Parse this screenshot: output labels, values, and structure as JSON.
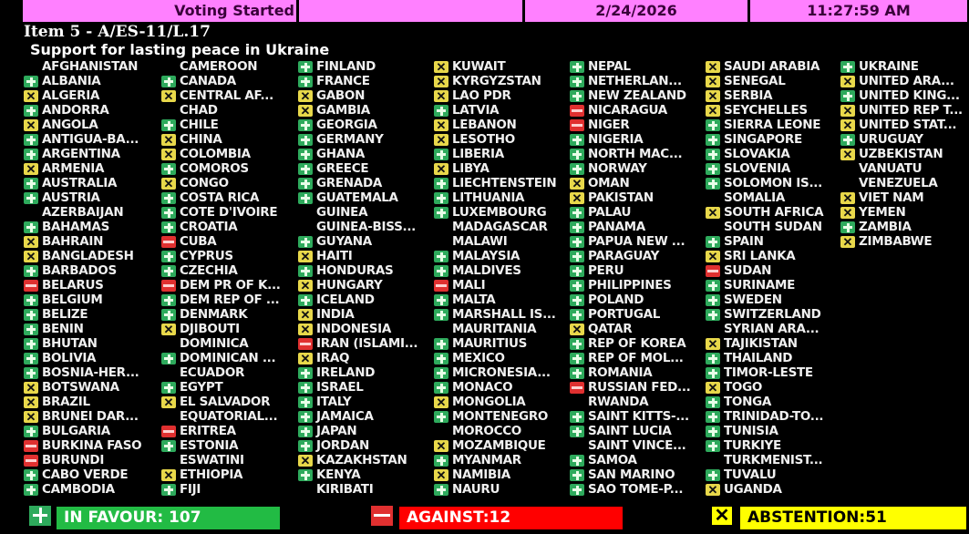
{
  "header": {
    "status": "Voting Started",
    "blank": "",
    "date": "2/24/2026",
    "time": "11:27:59 AM"
  },
  "item": {
    "number": "Item 5 - A/ES-11/L.17",
    "title": "Support for lasting peace in Ukraine"
  },
  "colors": {
    "header_bg": "#ff80ff",
    "yes": "#2eaa5c",
    "no": "#e03030",
    "abstain": "#e8d84a",
    "favour_bar": "#22bb44",
    "against_bar": "#ff0000",
    "abstention_bar": "#ffff00"
  },
  "vote_legend": {
    "Y": "plus-icon (in favour)",
    "N": "minus-icon (against)",
    "A": "x-icon (abstention)",
    "": "no vote"
  },
  "columns": [
    [
      [
        "AFGHANISTAN",
        ""
      ],
      [
        "ALBANIA",
        "Y"
      ],
      [
        "ALGERIA",
        "A"
      ],
      [
        "ANDORRA",
        "Y"
      ],
      [
        "ANGOLA",
        "A"
      ],
      [
        "ANTIGUA-BA...",
        "Y"
      ],
      [
        "ARGENTINA",
        "Y"
      ],
      [
        "ARMENIA",
        "A"
      ],
      [
        "AUSTRALIA",
        "Y"
      ],
      [
        "AUSTRIA",
        "Y"
      ],
      [
        "AZERBAIJAN",
        ""
      ],
      [
        "BAHAMAS",
        "Y"
      ],
      [
        "BAHRAIN",
        "A"
      ],
      [
        "BANGLADESH",
        "A"
      ],
      [
        "BARBADOS",
        "Y"
      ],
      [
        "BELARUS",
        "N"
      ],
      [
        "BELGIUM",
        "Y"
      ],
      [
        "BELIZE",
        "Y"
      ],
      [
        "BENIN",
        "Y"
      ],
      [
        "BHUTAN",
        "Y"
      ],
      [
        "BOLIVIA",
        "Y"
      ],
      [
        "BOSNIA-HER...",
        "Y"
      ],
      [
        "BOTSWANA",
        "A"
      ],
      [
        "BRAZIL",
        "A"
      ],
      [
        "BRUNEI DAR...",
        "A"
      ],
      [
        "BULGARIA",
        "Y"
      ],
      [
        "BURKINA FASO",
        "N"
      ],
      [
        "BURUNDI",
        "N"
      ],
      [
        "CABO VERDE",
        "Y"
      ],
      [
        "CAMBODIA",
        "Y"
      ]
    ],
    [
      [
        "CAMEROON",
        ""
      ],
      [
        "CANADA",
        "Y"
      ],
      [
        "CENTRAL AF...",
        "A"
      ],
      [
        "CHAD",
        ""
      ],
      [
        "CHILE",
        "Y"
      ],
      [
        "CHINA",
        "A"
      ],
      [
        "COLOMBIA",
        "A"
      ],
      [
        "COMOROS",
        "Y"
      ],
      [
        "CONGO",
        "A"
      ],
      [
        "COSTA RICA",
        "Y"
      ],
      [
        "COTE D'IVOIRE",
        "Y"
      ],
      [
        "CROATIA",
        "Y"
      ],
      [
        "CUBA",
        "N"
      ],
      [
        "CYPRUS",
        "Y"
      ],
      [
        "CZECHIA",
        "Y"
      ],
      [
        "DEM PR OF K...",
        "N"
      ],
      [
        "DEM REP OF ...",
        "Y"
      ],
      [
        "DENMARK",
        "Y"
      ],
      [
        "DJIBOUTI",
        "A"
      ],
      [
        "DOMINICA",
        ""
      ],
      [
        "DOMINICAN ...",
        "Y"
      ],
      [
        "ECUADOR",
        ""
      ],
      [
        "EGYPT",
        "Y"
      ],
      [
        "EL SALVADOR",
        "A"
      ],
      [
        "EQUATORIAL...",
        ""
      ],
      [
        "ERITREA",
        "N"
      ],
      [
        "ESTONIA",
        "Y"
      ],
      [
        "ESWATINI",
        ""
      ],
      [
        "ETHIOPIA",
        "A"
      ],
      [
        "FIJI",
        "Y"
      ]
    ],
    [
      [
        "FINLAND",
        "Y"
      ],
      [
        "FRANCE",
        "Y"
      ],
      [
        "GABON",
        "A"
      ],
      [
        "GAMBIA",
        "A"
      ],
      [
        "GEORGIA",
        "Y"
      ],
      [
        "GERMANY",
        "Y"
      ],
      [
        "GHANA",
        "Y"
      ],
      [
        "GREECE",
        "Y"
      ],
      [
        "GRENADA",
        "Y"
      ],
      [
        "GUATEMALA",
        "Y"
      ],
      [
        "GUINEA",
        ""
      ],
      [
        "GUINEA-BISS...",
        ""
      ],
      [
        "GUYANA",
        "Y"
      ],
      [
        "HAITI",
        "A"
      ],
      [
        "HONDURAS",
        "Y"
      ],
      [
        "HUNGARY",
        "A"
      ],
      [
        "ICELAND",
        "Y"
      ],
      [
        "INDIA",
        "A"
      ],
      [
        "INDONESIA",
        "A"
      ],
      [
        "IRAN (ISLAMI...",
        "N"
      ],
      [
        "IRAQ",
        "A"
      ],
      [
        "IRELAND",
        "Y"
      ],
      [
        "ISRAEL",
        "Y"
      ],
      [
        "ITALY",
        "Y"
      ],
      [
        "JAMAICA",
        "Y"
      ],
      [
        "JAPAN",
        "Y"
      ],
      [
        "JORDAN",
        "Y"
      ],
      [
        "KAZAKHSTAN",
        "A"
      ],
      [
        "KENYA",
        "Y"
      ],
      [
        "KIRIBATI",
        ""
      ]
    ],
    [
      [
        "KUWAIT",
        "A"
      ],
      [
        "KYRGYZSTAN",
        "A"
      ],
      [
        "LAO PDR",
        "A"
      ],
      [
        "LATVIA",
        "Y"
      ],
      [
        "LEBANON",
        "A"
      ],
      [
        "LESOTHO",
        "A"
      ],
      [
        "LIBERIA",
        "Y"
      ],
      [
        "LIBYA",
        "A"
      ],
      [
        "LIECHTENSTEIN",
        "Y"
      ],
      [
        "LITHUANIA",
        "Y"
      ],
      [
        "LUXEMBOURG",
        "Y"
      ],
      [
        "MADAGASCAR",
        ""
      ],
      [
        "MALAWI",
        ""
      ],
      [
        "MALAYSIA",
        "Y"
      ],
      [
        "MALDIVES",
        "Y"
      ],
      [
        "MALI",
        "N"
      ],
      [
        "MALTA",
        "Y"
      ],
      [
        "MARSHALL IS...",
        "Y"
      ],
      [
        "MAURITANIA",
        ""
      ],
      [
        "MAURITIUS",
        "Y"
      ],
      [
        "MEXICO",
        "Y"
      ],
      [
        "MICRONESIA...",
        "Y"
      ],
      [
        "MONACO",
        "Y"
      ],
      [
        "MONGOLIA",
        "A"
      ],
      [
        "MONTENEGRO",
        "Y"
      ],
      [
        "MOROCCO",
        ""
      ],
      [
        "MOZAMBIQUE",
        "A"
      ],
      [
        "MYANMAR",
        "Y"
      ],
      [
        "NAMIBIA",
        "A"
      ],
      [
        "NAURU",
        "Y"
      ]
    ],
    [
      [
        "NEPAL",
        "Y"
      ],
      [
        "NETHERLAN...",
        "Y"
      ],
      [
        "NEW ZEALAND",
        "Y"
      ],
      [
        "NICARAGUA",
        "N"
      ],
      [
        "NIGER",
        "N"
      ],
      [
        "NIGERIA",
        "Y"
      ],
      [
        "NORTH MAC...",
        "Y"
      ],
      [
        "NORWAY",
        "Y"
      ],
      [
        "OMAN",
        "A"
      ],
      [
        "PAKISTAN",
        "A"
      ],
      [
        "PALAU",
        "Y"
      ],
      [
        "PANAMA",
        "Y"
      ],
      [
        "PAPUA NEW ...",
        "Y"
      ],
      [
        "PARAGUAY",
        "Y"
      ],
      [
        "PERU",
        "Y"
      ],
      [
        "PHILIPPINES",
        "Y"
      ],
      [
        "POLAND",
        "Y"
      ],
      [
        "PORTUGAL",
        "Y"
      ],
      [
        "QATAR",
        "A"
      ],
      [
        "REP OF KOREA",
        "Y"
      ],
      [
        "REP OF MOL...",
        "Y"
      ],
      [
        "ROMANIA",
        "Y"
      ],
      [
        "RUSSIAN FED...",
        "N"
      ],
      [
        "RWANDA",
        ""
      ],
      [
        "SAINT KITTS-...",
        "Y"
      ],
      [
        "SAINT LUCIA",
        "Y"
      ],
      [
        "SAINT VINCE...",
        ""
      ],
      [
        "SAMOA",
        "Y"
      ],
      [
        "SAN MARINO",
        "Y"
      ],
      [
        "SAO TOME-P...",
        "Y"
      ]
    ],
    [
      [
        "SAUDI ARABIA",
        "A"
      ],
      [
        "SENEGAL",
        "A"
      ],
      [
        "SERBIA",
        "A"
      ],
      [
        "SEYCHELLES",
        "A"
      ],
      [
        "SIERRA LEONE",
        "Y"
      ],
      [
        "SINGAPORE",
        "Y"
      ],
      [
        "SLOVAKIA",
        "Y"
      ],
      [
        "SLOVENIA",
        "Y"
      ],
      [
        "SOLOMON IS...",
        "Y"
      ],
      [
        "SOMALIA",
        ""
      ],
      [
        "SOUTH AFRICA",
        "A"
      ],
      [
        "SOUTH SUDAN",
        ""
      ],
      [
        "SPAIN",
        "Y"
      ],
      [
        "SRI LANKA",
        "A"
      ],
      [
        "SUDAN",
        "N"
      ],
      [
        "SURINAME",
        "Y"
      ],
      [
        "SWEDEN",
        "Y"
      ],
      [
        "SWITZERLAND",
        "Y"
      ],
      [
        "SYRIAN ARA...",
        ""
      ],
      [
        "TAJIKISTAN",
        "A"
      ],
      [
        "THAILAND",
        "Y"
      ],
      [
        "TIMOR-LESTE",
        "Y"
      ],
      [
        "TOGO",
        "A"
      ],
      [
        "TONGA",
        "Y"
      ],
      [
        "TRINIDAD-TO...",
        "Y"
      ],
      [
        "TUNISIA",
        "Y"
      ],
      [
        "TURKIYE",
        "Y"
      ],
      [
        "TURKMENIST...",
        ""
      ],
      [
        "TUVALU",
        "Y"
      ],
      [
        "UGANDA",
        "A"
      ]
    ],
    [
      [
        "UKRAINE",
        "Y"
      ],
      [
        "UNITED ARA...",
        "A"
      ],
      [
        "UNITED KING...",
        "Y"
      ],
      [
        "UNITED REP T...",
        "A"
      ],
      [
        "UNITED STAT...",
        "A"
      ],
      [
        "URUGUAY",
        "Y"
      ],
      [
        "UZBEKISTAN",
        "A"
      ],
      [
        "VANUATU",
        ""
      ],
      [
        "VENEZUELA",
        ""
      ],
      [
        "VIET NAM",
        "A"
      ],
      [
        "YEMEN",
        "A"
      ],
      [
        "ZAMBIA",
        "Y"
      ],
      [
        "ZIMBABWE",
        "A"
      ]
    ]
  ],
  "totals": {
    "favour": "IN FAVOUR: 107",
    "against": "AGAINST:12",
    "abstention": "ABSTENTION:51"
  }
}
